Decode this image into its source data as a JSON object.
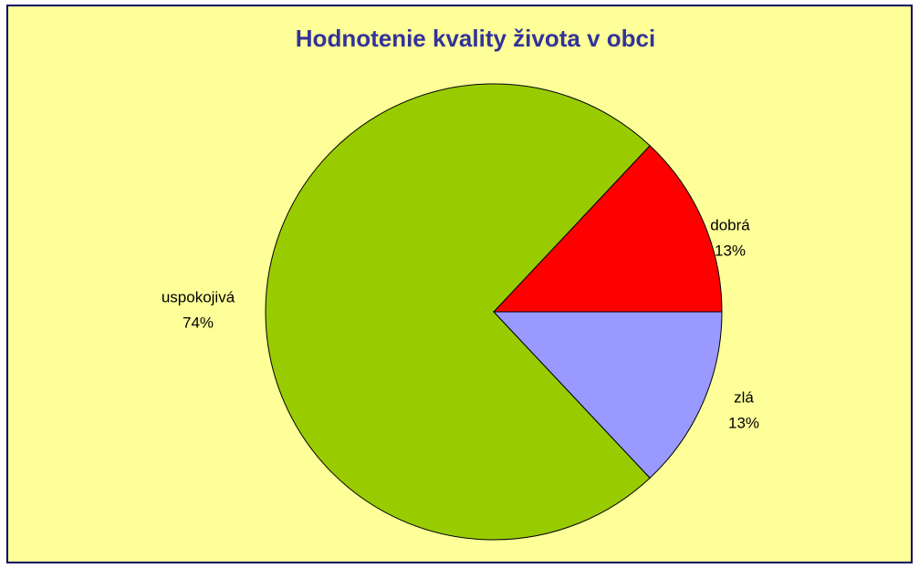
{
  "chart_data": {
    "type": "pie",
    "title": "Hodnotenie kvality života v obci",
    "categories": [
      "dobrá",
      "uspokojivá",
      "zlá"
    ],
    "values": [
      13,
      74,
      13
    ],
    "value_labels": [
      "13%",
      "74%",
      "13%"
    ],
    "colors": [
      "#ff0000",
      "#99cc00",
      "#9999ff"
    ]
  }
}
